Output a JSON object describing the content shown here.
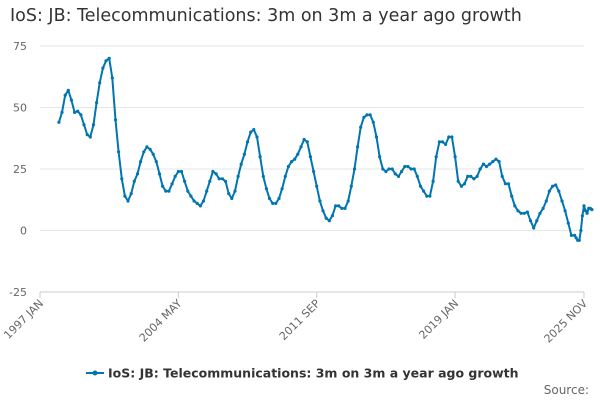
{
  "chart_data": {
    "type": "line",
    "title": "IoS: JB: Telecommunications: 3m on 3m a year ago growth",
    "xlabel": "",
    "ylabel": "",
    "ylim": [
      -25,
      75
    ],
    "xlim": [
      "1997-01",
      "2025-11"
    ],
    "yticks": [
      -25,
      0,
      25,
      50,
      75
    ],
    "xticks": [
      {
        "label": "1997 JAN",
        "date": "1997-01"
      },
      {
        "label": "2004 MAY",
        "date": "2004-05"
      },
      {
        "label": "2011 SEP",
        "date": "2011-09"
      },
      {
        "label": "2019 JAN",
        "date": "2019-01"
      },
      {
        "label": "2025 NOV",
        "date": "2025-11"
      }
    ],
    "grid": true,
    "legend_position": "bottom",
    "colors": {
      "series": "#0075b0",
      "grid": "#e6e6e6",
      "text": "#666666",
      "title": "#333333"
    },
    "series": [
      {
        "name": "IoS: JB: Telecommunications: 3m on 3m a year ago growth",
        "points": [
          [
            "1998-01",
            44
          ],
          [
            "1998-03",
            48
          ],
          [
            "1998-05",
            55
          ],
          [
            "1998-07",
            57
          ],
          [
            "1998-09",
            53
          ],
          [
            "1998-11",
            48
          ],
          [
            "1999-01",
            48.5
          ],
          [
            "1999-03",
            47
          ],
          [
            "1999-05",
            43
          ],
          [
            "1999-07",
            39
          ],
          [
            "1999-09",
            38
          ],
          [
            "1999-11",
            43
          ],
          [
            "2000-01",
            52
          ],
          [
            "2000-03",
            60
          ],
          [
            "2000-05",
            66
          ],
          [
            "2000-07",
            69
          ],
          [
            "2000-09",
            70
          ],
          [
            "2000-11",
            62
          ],
          [
            "2001-01",
            45
          ],
          [
            "2001-03",
            32
          ],
          [
            "2001-05",
            21
          ],
          [
            "2001-07",
            14
          ],
          [
            "2001-09",
            12
          ],
          [
            "2001-11",
            15
          ],
          [
            "2002-01",
            20
          ],
          [
            "2002-03",
            23
          ],
          [
            "2002-05",
            28
          ],
          [
            "2002-07",
            32
          ],
          [
            "2002-09",
            34
          ],
          [
            "2002-11",
            33
          ],
          [
            "2003-01",
            31
          ],
          [
            "2003-03",
            28
          ],
          [
            "2003-05",
            23
          ],
          [
            "2003-07",
            18
          ],
          [
            "2003-09",
            16
          ],
          [
            "2003-11",
            16
          ],
          [
            "2004-01",
            19
          ],
          [
            "2004-03",
            22
          ],
          [
            "2004-05",
            24
          ],
          [
            "2004-07",
            24
          ],
          [
            "2004-09",
            20
          ],
          [
            "2004-11",
            16
          ],
          [
            "2005-01",
            14
          ],
          [
            "2005-03",
            12
          ],
          [
            "2005-05",
            11
          ],
          [
            "2005-07",
            10
          ],
          [
            "2005-09",
            12
          ],
          [
            "2005-11",
            16
          ],
          [
            "2006-01",
            20
          ],
          [
            "2006-03",
            24
          ],
          [
            "2006-05",
            23
          ],
          [
            "2006-07",
            21
          ],
          [
            "2006-09",
            21
          ],
          [
            "2006-11",
            20
          ],
          [
            "2007-01",
            15
          ],
          [
            "2007-03",
            13
          ],
          [
            "2007-05",
            16
          ],
          [
            "2007-07",
            22
          ],
          [
            "2007-09",
            27
          ],
          [
            "2007-11",
            31
          ],
          [
            "2008-01",
            36
          ],
          [
            "2008-03",
            40
          ],
          [
            "2008-05",
            41
          ],
          [
            "2008-07",
            38
          ],
          [
            "2008-09",
            30
          ],
          [
            "2008-11",
            22
          ],
          [
            "2009-01",
            17
          ],
          [
            "2009-03",
            13
          ],
          [
            "2009-05",
            11
          ],
          [
            "2009-07",
            11
          ],
          [
            "2009-09",
            13
          ],
          [
            "2009-11",
            17
          ],
          [
            "2010-01",
            22
          ],
          [
            "2010-03",
            26
          ],
          [
            "2010-05",
            28
          ],
          [
            "2010-07",
            29
          ],
          [
            "2010-09",
            31
          ],
          [
            "2010-11",
            34
          ],
          [
            "2011-01",
            37
          ],
          [
            "2011-03",
            36
          ],
          [
            "2011-05",
            30
          ],
          [
            "2011-07",
            24
          ],
          [
            "2011-09",
            18
          ],
          [
            "2011-11",
            12
          ],
          [
            "2012-01",
            8
          ],
          [
            "2012-03",
            5
          ],
          [
            "2012-05",
            4
          ],
          [
            "2012-07",
            6
          ],
          [
            "2012-09",
            10
          ],
          [
            "2012-11",
            10
          ],
          [
            "2013-01",
            9
          ],
          [
            "2013-03",
            9
          ],
          [
            "2013-05",
            12
          ],
          [
            "2013-07",
            18
          ],
          [
            "2013-09",
            25
          ],
          [
            "2013-11",
            34
          ],
          [
            "2014-01",
            42
          ],
          [
            "2014-03",
            46
          ],
          [
            "2014-05",
            47
          ],
          [
            "2014-07",
            47
          ],
          [
            "2014-09",
            44
          ],
          [
            "2014-11",
            38
          ],
          [
            "2015-01",
            30
          ],
          [
            "2015-03",
            25
          ],
          [
            "2015-05",
            24
          ],
          [
            "2015-07",
            25
          ],
          [
            "2015-09",
            25
          ],
          [
            "2015-11",
            23
          ],
          [
            "2016-01",
            22
          ],
          [
            "2016-03",
            24
          ],
          [
            "2016-05",
            26
          ],
          [
            "2016-07",
            26
          ],
          [
            "2016-09",
            25
          ],
          [
            "2016-11",
            25
          ],
          [
            "2017-01",
            22
          ],
          [
            "2017-03",
            18
          ],
          [
            "2017-05",
            16
          ],
          [
            "2017-07",
            14
          ],
          [
            "2017-09",
            14
          ],
          [
            "2017-11",
            20
          ],
          [
            "2018-01",
            30
          ],
          [
            "2018-03",
            36
          ],
          [
            "2018-05",
            36
          ],
          [
            "2018-07",
            35
          ],
          [
            "2018-09",
            38
          ],
          [
            "2018-11",
            38
          ],
          [
            "2019-01",
            30
          ],
          [
            "2019-03",
            20
          ],
          [
            "2019-05",
            18
          ],
          [
            "2019-07",
            19
          ],
          [
            "2019-09",
            22
          ],
          [
            "2019-11",
            22
          ],
          [
            "2020-01",
            21
          ],
          [
            "2020-03",
            22
          ],
          [
            "2020-05",
            25
          ],
          [
            "2020-07",
            27
          ],
          [
            "2020-09",
            26
          ],
          [
            "2020-11",
            27
          ],
          [
            "2021-01",
            28
          ],
          [
            "2021-03",
            29
          ],
          [
            "2021-05",
            28
          ],
          [
            "2021-07",
            22
          ],
          [
            "2021-09",
            19
          ],
          [
            "2021-11",
            19
          ],
          [
            "2022-01",
            14
          ],
          [
            "2022-03",
            10
          ],
          [
            "2022-05",
            8
          ],
          [
            "2022-07",
            7
          ],
          [
            "2022-09",
            7
          ],
          [
            "2022-11",
            7.5
          ],
          [
            "2023-01",
            4
          ],
          [
            "2023-03",
            1
          ],
          [
            "2023-05",
            4
          ],
          [
            "2023-07",
            7
          ],
          [
            "2023-09",
            9
          ],
          [
            "2023-11",
            12
          ],
          [
            "2024-01",
            16
          ],
          [
            "2024-03",
            18
          ],
          [
            "2024-05",
            18.5
          ],
          [
            "2024-07",
            16
          ],
          [
            "2024-09",
            12
          ],
          [
            "2024-11",
            8
          ],
          [
            "2025-01",
            3
          ],
          [
            "2025-03",
            -2
          ],
          [
            "2025-05",
            -2
          ],
          [
            "2025-06",
            -3
          ],
          [
            "2025-07",
            -4
          ],
          [
            "2025-08",
            -4
          ],
          [
            "2025-09",
            0
          ],
          [
            "2025-10",
            6
          ],
          [
            "2025-11",
            10
          ],
          [
            "2025-12",
            8
          ],
          [
            "2026-01",
            7
          ],
          [
            "2026-02",
            9
          ],
          [
            "2026-03",
            9
          ],
          [
            "2026-04",
            8.5
          ]
        ]
      }
    ],
    "legend": [
      {
        "label": "IoS: JB: Telecommunications: 3m on 3m a year ago growth"
      }
    ],
    "source_label": "Source:"
  }
}
